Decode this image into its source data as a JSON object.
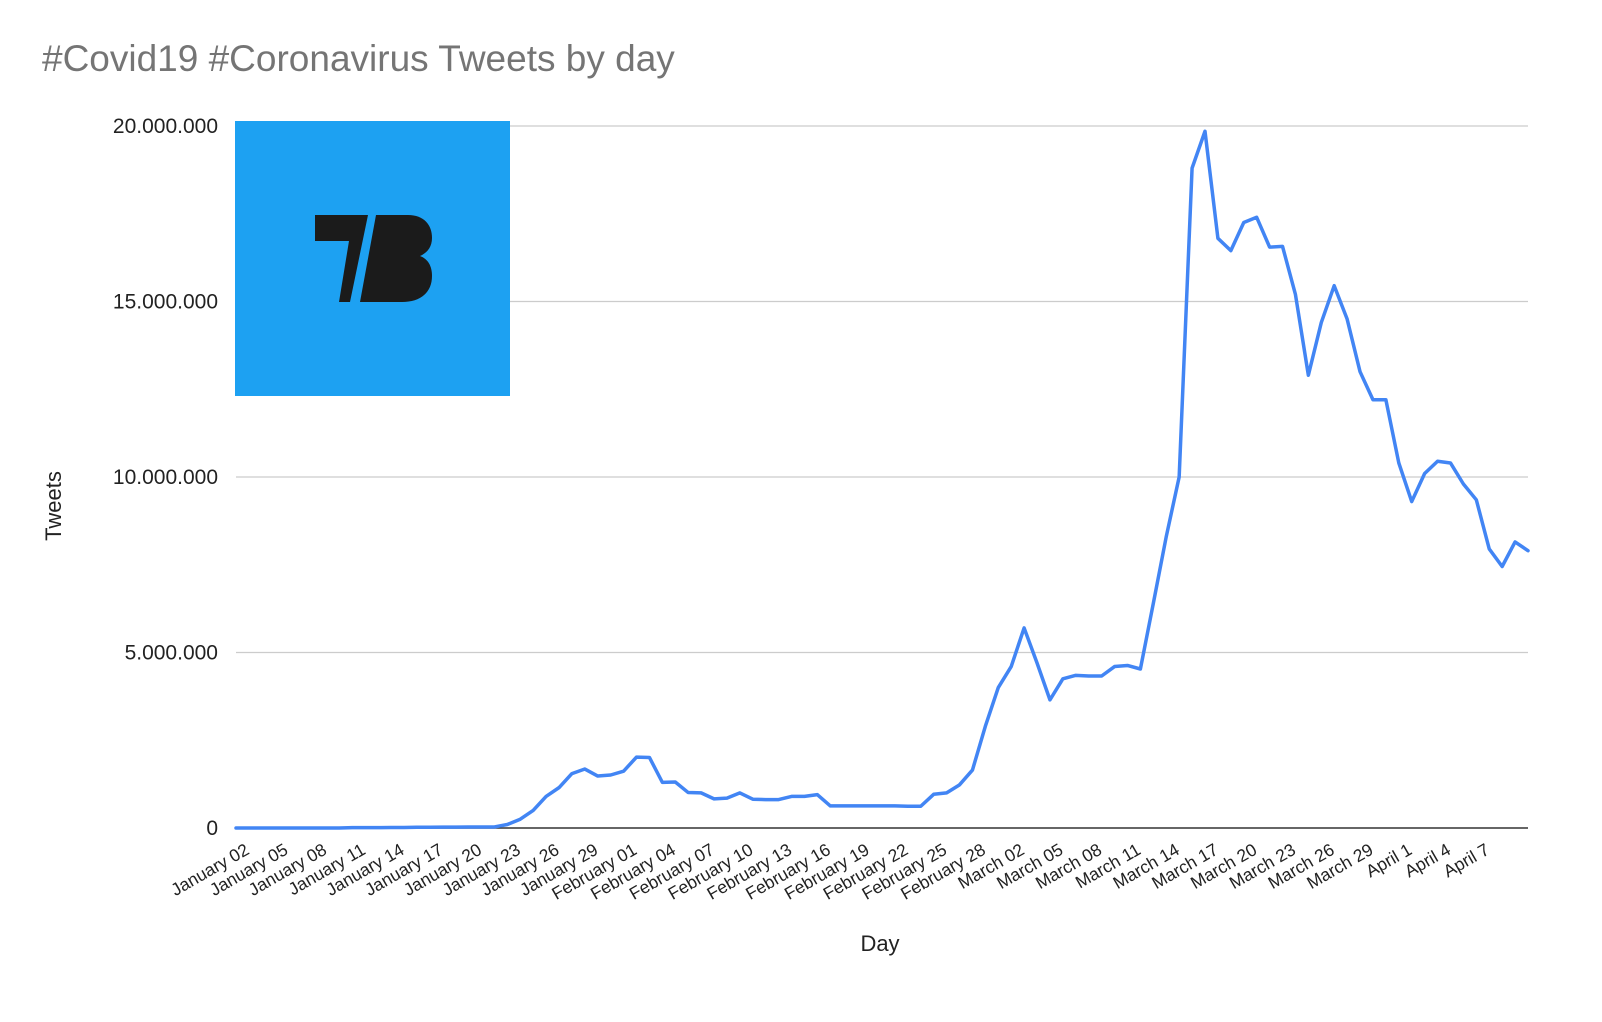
{
  "chart_data": {
    "type": "line",
    "title": "#Covid19 #Coronavirus Tweets by day",
    "xlabel": "Day",
    "ylabel": "Tweets",
    "ylim": [
      0,
      20000000
    ],
    "y_ticks": [
      0,
      5000000,
      10000000,
      15000000,
      20000000
    ],
    "y_tick_labels": [
      "0",
      "5.000.000",
      "10.000.000",
      "15.000.000",
      "20.000.000"
    ],
    "x_tick_labels": [
      "January 02",
      "January 05",
      "January 08",
      "January 11",
      "January 14",
      "January 17",
      "January 20",
      "January 23",
      "January 26",
      "January 29",
      "February 01",
      "February 04",
      "February 07",
      "February 10",
      "February 13",
      "February 16",
      "February 19",
      "February 22",
      "February 25",
      "February 28",
      "March 02",
      "March 05",
      "March 08",
      "March 11",
      "March 14",
      "March 17",
      "March 20",
      "March 23",
      "March 26",
      "March 29",
      "April 1",
      "April 4",
      "April 7"
    ],
    "grid": true,
    "legend": "none",
    "line_color": "#4285f4",
    "logo_color": "#1da1f2",
    "series": [
      {
        "values": [
          0,
          0,
          0,
          0,
          0,
          0,
          0,
          0,
          0,
          10000,
          10000,
          10000,
          15000,
          15000,
          20000,
          20000,
          25000,
          25000,
          30000,
          30000,
          30000,
          100000,
          250000,
          500000,
          900000,
          1150000,
          1550000,
          1680000,
          1480000,
          1510000,
          1620000,
          2020000,
          2010000,
          1300000,
          1310000,
          1010000,
          1000000,
          830000,
          850000,
          1000000,
          820000,
          810000,
          810000,
          900000,
          900000,
          950000,
          630000,
          630000,
          630000,
          630000,
          630000,
          630000,
          620000,
          620000,
          960000,
          1000000,
          1230000,
          1650000,
          2900000,
          4000000,
          4600000,
          5700000,
          4700000,
          3650000,
          4250000,
          4350000,
          4330000,
          4330000,
          4600000,
          4630000,
          4530000,
          6400000,
          8300000,
          10000000,
          18800000,
          19850000,
          16800000,
          16450000,
          17250000,
          17400000,
          16550000,
          16570000,
          15200000,
          12900000,
          14400000,
          15450000,
          14500000,
          13000000,
          12200000,
          12200000,
          10400000,
          9300000,
          10100000,
          10450000,
          10400000,
          9800000,
          9350000,
          7950000,
          7450000,
          8150000,
          7900000
        ]
      }
    ]
  }
}
